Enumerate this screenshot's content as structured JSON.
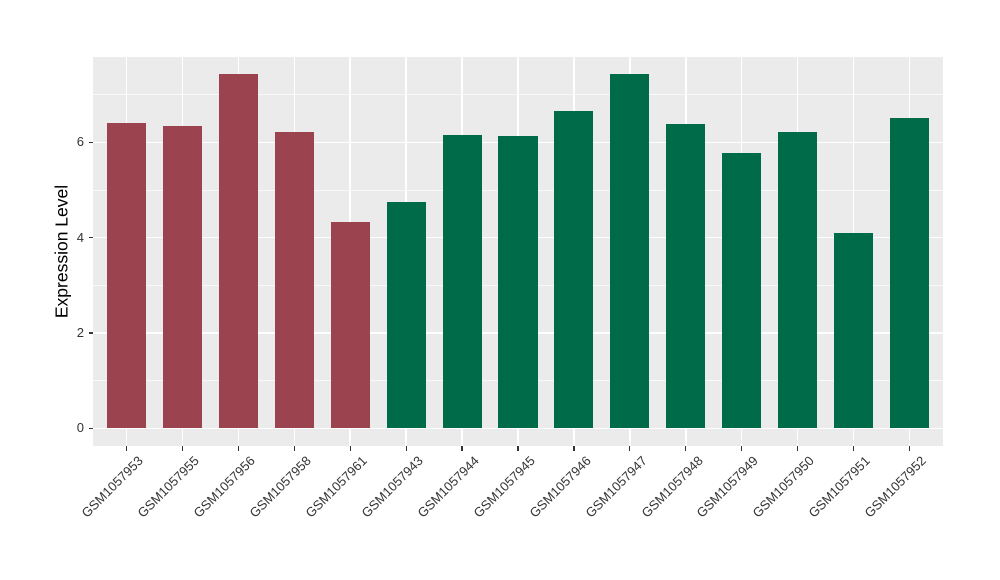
{
  "chart_data": {
    "type": "bar",
    "title": "",
    "xlabel": "",
    "ylabel": "Expression Level",
    "categories": [
      "GSM1057953",
      "GSM1057955",
      "GSM1057956",
      "GSM1057958",
      "GSM1057961",
      "GSM1057943",
      "GSM1057944",
      "GSM1057945",
      "GSM1057946",
      "GSM1057947",
      "GSM1057948",
      "GSM1057949",
      "GSM1057950",
      "GSM1057951",
      "GSM1057952"
    ],
    "values": [
      6.4,
      6.35,
      7.43,
      6.22,
      4.33,
      4.75,
      6.15,
      6.13,
      6.66,
      7.43,
      6.38,
      5.77,
      6.22,
      4.1,
      6.5
    ],
    "bar_colors": [
      "#9B4450",
      "#9B4450",
      "#9B4450",
      "#9B4450",
      "#9B4450",
      "#006B48",
      "#006B48",
      "#006B48",
      "#006B48",
      "#006B48",
      "#006B48",
      "#006B48",
      "#006B48",
      "#006B48",
      "#006B48"
    ],
    "group_color_red": "#9B4450",
    "group_color_green": "#006B48",
    "y_ticks": [
      "0",
      "2",
      "4",
      "6"
    ],
    "y_tick_values": [
      0,
      2,
      4,
      6
    ],
    "y_minor_tick_values": [
      1,
      3,
      5,
      7
    ],
    "ylim": [
      -0.37,
      7.79
    ],
    "grid": true,
    "legend": "none",
    "panel_background": "#EBEBEB",
    "gridline_major_color": "#FFFFFF",
    "gridline_minor_color": "rgba(255,255,255,0.7)",
    "axis_text_color": "#333333",
    "tick_mark_color": "#333333"
  }
}
